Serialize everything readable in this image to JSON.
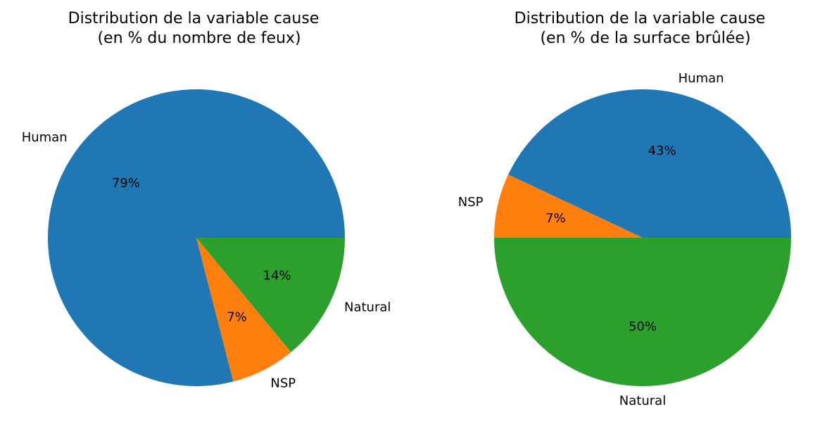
{
  "chart_data": [
    {
      "type": "pie",
      "title_lines": [
        "Distribution de la variable cause",
        "(en % du nombre de feux)"
      ],
      "categories": [
        "Human",
        "NSP",
        "Natural"
      ],
      "values": [
        79,
        7,
        14
      ],
      "value_labels": [
        "79%",
        "7%",
        "14%"
      ],
      "colors": [
        "#1f77b4",
        "#ff7f0e",
        "#2ca02c"
      ],
      "start_angle_deg": 0,
      "direction": "counterclockwise"
    },
    {
      "type": "pie",
      "title_lines": [
        "Distribution de la variable cause",
        "(en % de la surface brûlée)"
      ],
      "categories": [
        "Human",
        "NSP",
        "Natural"
      ],
      "values": [
        43,
        7,
        50
      ],
      "value_labels": [
        "43%",
        "7%",
        "50%"
      ],
      "colors": [
        "#1f77b4",
        "#ff7f0e",
        "#2ca02c"
      ],
      "start_angle_deg": 0,
      "direction": "counterclockwise"
    }
  ]
}
